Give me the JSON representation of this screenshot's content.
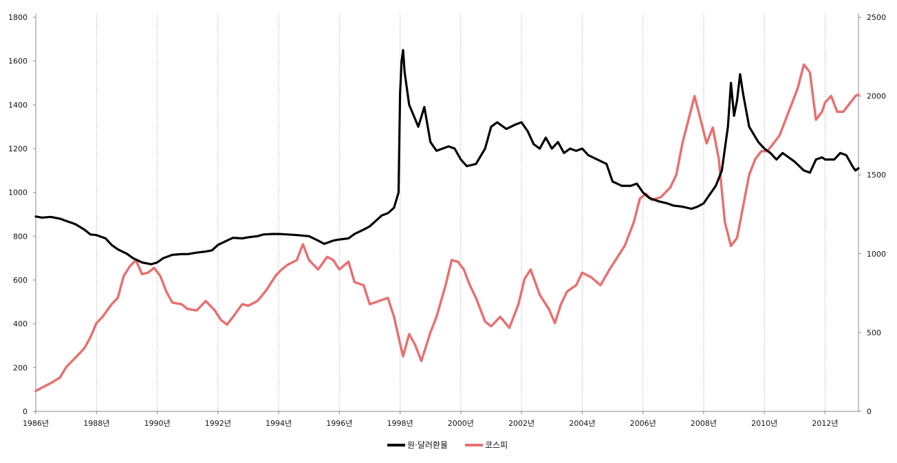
{
  "chart_data": {
    "type": "line",
    "title": "",
    "xlabel": "",
    "ylabel_left": "",
    "ylabel_right": "",
    "xlim": [
      1986,
      2013.1
    ],
    "ylim_left": [
      0,
      1800
    ],
    "ylim_right": [
      0,
      2500
    ],
    "grid": "vertical dotted at x tick labels",
    "legend_position": "bottom-center",
    "x_ticks": [
      1986,
      1988,
      1990,
      1992,
      1994,
      1996,
      1998,
      2000,
      2002,
      2004,
      2006,
      2008,
      2010,
      2012
    ],
    "x_tick_labels": [
      "1986년",
      "1988년",
      "1990년",
      "1992년",
      "1994년",
      "1996년",
      "1998년",
      "2000년",
      "2002년",
      "2004년",
      "2006년",
      "2008년",
      "2010년",
      "2012년"
    ],
    "y_left_ticks": [
      0,
      200,
      400,
      600,
      800,
      1000,
      1200,
      1400,
      1600,
      1800
    ],
    "y_right_ticks": [
      0,
      500,
      1000,
      1500,
      2000,
      2500
    ],
    "series": [
      {
        "name": "원·달러환율",
        "color": "#000000",
        "axis": "left",
        "points": [
          [
            1986.0,
            890
          ],
          [
            1986.2,
            885
          ],
          [
            1986.5,
            888
          ],
          [
            1986.8,
            880
          ],
          [
            1987.0,
            870
          ],
          [
            1987.3,
            855
          ],
          [
            1987.6,
            830
          ],
          [
            1987.8,
            808
          ],
          [
            1988.0,
            805
          ],
          [
            1988.3,
            790
          ],
          [
            1988.5,
            760
          ],
          [
            1988.7,
            740
          ],
          [
            1989.0,
            720
          ],
          [
            1989.2,
            700
          ],
          [
            1989.5,
            680
          ],
          [
            1989.8,
            672
          ],
          [
            1990.0,
            680
          ],
          [
            1990.2,
            700
          ],
          [
            1990.5,
            715
          ],
          [
            1990.8,
            718
          ],
          [
            1991.0,
            718
          ],
          [
            1991.3,
            725
          ],
          [
            1991.6,
            730
          ],
          [
            1991.8,
            735
          ],
          [
            1992.0,
            760
          ],
          [
            1992.3,
            780
          ],
          [
            1992.5,
            793
          ],
          [
            1992.8,
            790
          ],
          [
            1993.0,
            795
          ],
          [
            1993.3,
            800
          ],
          [
            1993.5,
            808
          ],
          [
            1993.8,
            810
          ],
          [
            1994.0,
            810
          ],
          [
            1994.3,
            808
          ],
          [
            1994.6,
            805
          ],
          [
            1995.0,
            800
          ],
          [
            1995.3,
            780
          ],
          [
            1995.5,
            765
          ],
          [
            1995.8,
            780
          ],
          [
            1996.0,
            785
          ],
          [
            1996.3,
            790
          ],
          [
            1996.5,
            810
          ],
          [
            1996.8,
            830
          ],
          [
            1997.0,
            845
          ],
          [
            1997.2,
            870
          ],
          [
            1997.4,
            895
          ],
          [
            1997.6,
            905
          ],
          [
            1997.8,
            930
          ],
          [
            1997.95,
            1000
          ],
          [
            1998.0,
            1450
          ],
          [
            1998.05,
            1600
          ],
          [
            1998.1,
            1650
          ],
          [
            1998.15,
            1550
          ],
          [
            1998.3,
            1400
          ],
          [
            1998.45,
            1350
          ],
          [
            1998.6,
            1300
          ],
          [
            1998.8,
            1390
          ],
          [
            1999.0,
            1230
          ],
          [
            1999.2,
            1190
          ],
          [
            1999.4,
            1200
          ],
          [
            1999.6,
            1210
          ],
          [
            1999.8,
            1200
          ],
          [
            2000.0,
            1150
          ],
          [
            2000.2,
            1120
          ],
          [
            2000.5,
            1130
          ],
          [
            2000.8,
            1200
          ],
          [
            2001.0,
            1300
          ],
          [
            2001.2,
            1320
          ],
          [
            2001.5,
            1290
          ],
          [
            2001.8,
            1310
          ],
          [
            2002.0,
            1320
          ],
          [
            2002.2,
            1280
          ],
          [
            2002.4,
            1220
          ],
          [
            2002.6,
            1200
          ],
          [
            2002.8,
            1250
          ],
          [
            2003.0,
            1200
          ],
          [
            2003.2,
            1230
          ],
          [
            2003.4,
            1180
          ],
          [
            2003.6,
            1200
          ],
          [
            2003.8,
            1190
          ],
          [
            2004.0,
            1200
          ],
          [
            2004.2,
            1170
          ],
          [
            2004.5,
            1150
          ],
          [
            2004.8,
            1130
          ],
          [
            2005.0,
            1050
          ],
          [
            2005.3,
            1030
          ],
          [
            2005.6,
            1030
          ],
          [
            2005.8,
            1040
          ],
          [
            2006.0,
            1000
          ],
          [
            2006.2,
            975
          ],
          [
            2006.5,
            960
          ],
          [
            2006.8,
            950
          ],
          [
            2007.0,
            940
          ],
          [
            2007.3,
            935
          ],
          [
            2007.6,
            925
          ],
          [
            2007.8,
            935
          ],
          [
            2008.0,
            950
          ],
          [
            2008.2,
            990
          ],
          [
            2008.4,
            1030
          ],
          [
            2008.6,
            1100
          ],
          [
            2008.8,
            1300
          ],
          [
            2008.9,
            1500
          ],
          [
            2009.0,
            1350
          ],
          [
            2009.1,
            1420
          ],
          [
            2009.2,
            1540
          ],
          [
            2009.3,
            1450
          ],
          [
            2009.5,
            1300
          ],
          [
            2009.8,
            1230
          ],
          [
            2010.0,
            1200
          ],
          [
            2010.2,
            1180
          ],
          [
            2010.4,
            1150
          ],
          [
            2010.6,
            1180
          ],
          [
            2010.8,
            1160
          ],
          [
            2011.0,
            1140
          ],
          [
            2011.3,
            1100
          ],
          [
            2011.5,
            1090
          ],
          [
            2011.7,
            1150
          ],
          [
            2011.9,
            1160
          ],
          [
            2012.0,
            1150
          ],
          [
            2012.3,
            1150
          ],
          [
            2012.5,
            1180
          ],
          [
            2012.7,
            1170
          ],
          [
            2012.9,
            1120
          ],
          [
            2013.0,
            1100
          ],
          [
            2013.1,
            1110
          ]
        ]
      },
      {
        "name": "코스피",
        "color": "#e87070",
        "axis": "right",
        "points": [
          [
            1986.0,
            130
          ],
          [
            1986.2,
            150
          ],
          [
            1986.5,
            180
          ],
          [
            1986.8,
            215
          ],
          [
            1987.0,
            280
          ],
          [
            1987.3,
            340
          ],
          [
            1987.6,
            400
          ],
          [
            1987.8,
            470
          ],
          [
            1988.0,
            560
          ],
          [
            1988.2,
            600
          ],
          [
            1988.5,
            680
          ],
          [
            1988.7,
            720
          ],
          [
            1988.9,
            860
          ],
          [
            1989.1,
            920
          ],
          [
            1989.3,
            960
          ],
          [
            1989.5,
            870
          ],
          [
            1989.7,
            880
          ],
          [
            1989.9,
            910
          ],
          [
            1990.1,
            860
          ],
          [
            1990.3,
            760
          ],
          [
            1990.5,
            690
          ],
          [
            1990.8,
            680
          ],
          [
            1991.0,
            650
          ],
          [
            1991.3,
            640
          ],
          [
            1991.6,
            700
          ],
          [
            1991.9,
            640
          ],
          [
            1992.1,
            580
          ],
          [
            1992.3,
            550
          ],
          [
            1992.5,
            600
          ],
          [
            1992.8,
            680
          ],
          [
            1993.0,
            670
          ],
          [
            1993.3,
            700
          ],
          [
            1993.6,
            770
          ],
          [
            1993.9,
            860
          ],
          [
            1994.1,
            900
          ],
          [
            1994.3,
            930
          ],
          [
            1994.6,
            960
          ],
          [
            1994.8,
            1060
          ],
          [
            1995.0,
            960
          ],
          [
            1995.3,
            900
          ],
          [
            1995.6,
            980
          ],
          [
            1995.8,
            960
          ],
          [
            1996.0,
            900
          ],
          [
            1996.3,
            950
          ],
          [
            1996.5,
            820
          ],
          [
            1996.8,
            800
          ],
          [
            1997.0,
            680
          ],
          [
            1997.3,
            700
          ],
          [
            1997.6,
            720
          ],
          [
            1997.8,
            600
          ],
          [
            1998.0,
            430
          ],
          [
            1998.1,
            350
          ],
          [
            1998.3,
            490
          ],
          [
            1998.5,
            420
          ],
          [
            1998.7,
            320
          ],
          [
            1999.0,
            500
          ],
          [
            1999.2,
            600
          ],
          [
            1999.5,
            800
          ],
          [
            1999.7,
            960
          ],
          [
            1999.9,
            950
          ],
          [
            2000.1,
            900
          ],
          [
            2000.3,
            800
          ],
          [
            2000.5,
            720
          ],
          [
            2000.8,
            570
          ],
          [
            2001.0,
            540
          ],
          [
            2001.3,
            600
          ],
          [
            2001.6,
            530
          ],
          [
            2001.9,
            680
          ],
          [
            2002.1,
            840
          ],
          [
            2002.3,
            900
          ],
          [
            2002.6,
            740
          ],
          [
            2002.9,
            650
          ],
          [
            2003.1,
            560
          ],
          [
            2003.3,
            680
          ],
          [
            2003.5,
            760
          ],
          [
            2003.8,
            800
          ],
          [
            2004.0,
            880
          ],
          [
            2004.3,
            850
          ],
          [
            2004.6,
            800
          ],
          [
            2004.9,
            900
          ],
          [
            2005.1,
            960
          ],
          [
            2005.4,
            1050
          ],
          [
            2005.7,
            1200
          ],
          [
            2005.9,
            1350
          ],
          [
            2006.1,
            1380
          ],
          [
            2006.3,
            1340
          ],
          [
            2006.6,
            1360
          ],
          [
            2006.9,
            1420
          ],
          [
            2007.1,
            1500
          ],
          [
            2007.3,
            1700
          ],
          [
            2007.5,
            1850
          ],
          [
            2007.7,
            2000
          ],
          [
            2007.9,
            1850
          ],
          [
            2008.1,
            1700
          ],
          [
            2008.3,
            1800
          ],
          [
            2008.5,
            1600
          ],
          [
            2008.7,
            1200
          ],
          [
            2008.9,
            1050
          ],
          [
            2009.1,
            1100
          ],
          [
            2009.3,
            1300
          ],
          [
            2009.5,
            1500
          ],
          [
            2009.7,
            1600
          ],
          [
            2009.9,
            1650
          ],
          [
            2010.1,
            1650
          ],
          [
            2010.3,
            1700
          ],
          [
            2010.5,
            1750
          ],
          [
            2010.7,
            1850
          ],
          [
            2010.9,
            1950
          ],
          [
            2011.1,
            2050
          ],
          [
            2011.3,
            2200
          ],
          [
            2011.5,
            2150
          ],
          [
            2011.7,
            1850
          ],
          [
            2011.9,
            1900
          ],
          [
            2012.0,
            1960
          ],
          [
            2012.2,
            2000
          ],
          [
            2012.4,
            1900
          ],
          [
            2012.6,
            1900
          ],
          [
            2012.8,
            1950
          ],
          [
            2013.0,
            2000
          ],
          [
            2013.1,
            2010
          ]
        ]
      }
    ]
  }
}
